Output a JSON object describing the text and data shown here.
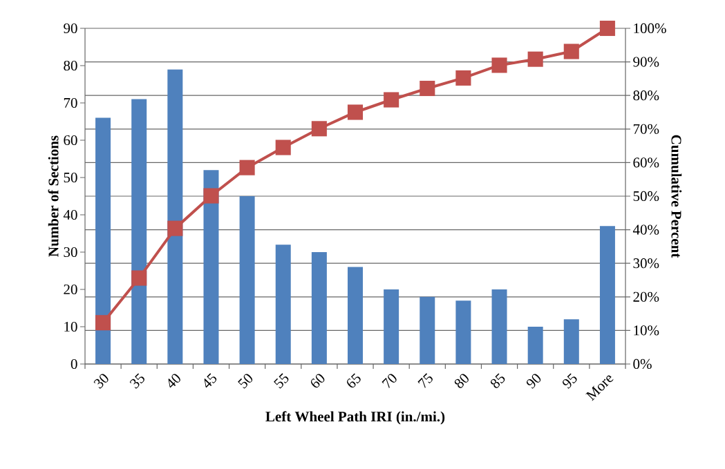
{
  "chart_data": {
    "type": "bar",
    "xlabel": "Left Wheel Path IRI (in./mi.)",
    "ylabel": "Number of Sections",
    "y2label": "Cumulative Percent",
    "categories": [
      "30",
      "35",
      "40",
      "45",
      "50",
      "55",
      "60",
      "65",
      "70",
      "75",
      "80",
      "85",
      "90",
      "95",
      "More"
    ],
    "series": [
      {
        "color": "#4f81bd",
        "values": [
          66,
          71,
          79,
          52,
          45,
          32,
          30,
          26,
          20,
          18,
          17,
          20,
          10,
          12,
          37
        ]
      },
      {
        "type": "line",
        "axis": "y2",
        "color": "#c0504d",
        "values": [
          12.3,
          25.6,
          40.4,
          50.1,
          58.5,
          64.5,
          70.1,
          75.0,
          78.7,
          82.1,
          85.2,
          89.0,
          90.8,
          93.1,
          100
        ]
      }
    ],
    "marker": "square",
    "ylim": [
      0,
      90
    ],
    "yticks": [
      0,
      10,
      20,
      30,
      40,
      50,
      60,
      70,
      80,
      90
    ],
    "y2lim": [
      0,
      100
    ],
    "y2ticks": [
      {
        "value": 0,
        "label": "0%"
      },
      {
        "value": 10,
        "label": "10%"
      },
      {
        "value": 20,
        "label": "20%"
      },
      {
        "value": 30,
        "label": "30%"
      },
      {
        "value": 40,
        "label": "40%"
      },
      {
        "value": 50,
        "label": "50%"
      },
      {
        "value": 60,
        "label": "60%"
      },
      {
        "value": 70,
        "label": "70%"
      },
      {
        "value": 80,
        "label": "80%"
      },
      {
        "value": 90,
        "label": "90%"
      },
      {
        "value": 100,
        "label": "100%"
      }
    ],
    "grid": "y2"
  }
}
